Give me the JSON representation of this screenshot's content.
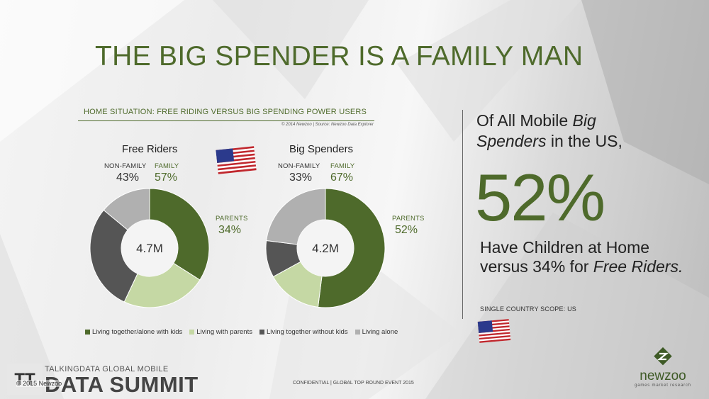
{
  "slide": {
    "title": "THE BIG SPENDER IS A FAMILY MAN",
    "chart_heading": "HOME SITUATION: FREE RIDING VERSUS BIG SPENDING POWER USERS",
    "chart_credit": "© 2014 Newzoo | Source: Newzoo Data Explorer"
  },
  "colors": {
    "accent_green": "#4e6a2b",
    "living_with_kids": "#4e6a2b",
    "living_with_parents": "#c5d8a4",
    "living_without_kids": "#555555",
    "living_alone": "#b0b0b0"
  },
  "donuts": [
    {
      "title": "Free Riders",
      "center_label": "4.7M",
      "non_family_label": "NON-FAMILY",
      "non_family_pct": "43%",
      "family_label": "FAMILY",
      "family_pct": "57%",
      "parents_label": "PARENTS",
      "parents_pct": "34%"
    },
    {
      "title": "Big Spenders",
      "center_label": "4.2M",
      "non_family_label": "NON-FAMILY",
      "non_family_pct": "33%",
      "family_label": "FAMILY",
      "family_pct": "67%",
      "parents_label": "PARENTS",
      "parents_pct": "52%"
    }
  ],
  "legend": [
    {
      "label": "Living together/alone with kids",
      "color": "#4e6a2b"
    },
    {
      "label": "Living with parents",
      "color": "#c5d8a4"
    },
    {
      "label": "Living together without kids",
      "color": "#555555"
    },
    {
      "label": "Living alone",
      "color": "#b0b0b0"
    }
  ],
  "chart_data": {
    "type": "pie",
    "title": "HOME SITUATION: FREE RIDING VERSUS BIG SPENDING POWER USERS",
    "categories": [
      "Living together/alone with kids",
      "Living with parents",
      "Living together without kids",
      "Living alone"
    ],
    "series": [
      {
        "name": "Free Riders",
        "values": [
          34,
          23,
          29,
          14
        ],
        "total": "4.7M"
      },
      {
        "name": "Big Spenders",
        "values": [
          52,
          15,
          10,
          23
        ],
        "total": "4.2M"
      }
    ],
    "legend_position": "bottom"
  },
  "callout": {
    "headline_pre": "Of All Mobile ",
    "headline_em1": "Big",
    "headline_em2": "Spenders",
    "headline_post": " in the US,",
    "big_stat": "52%",
    "sub_pre": "Have Children at Home versus 34% for ",
    "sub_em": "Free Riders.",
    "scope": "SINGLE COUNTRY SCOPE: US"
  },
  "footer": {
    "confidential": "CONFIDENTIAL | GLOBAL TOP ROUND EVENT 2015",
    "copyright": "© 2015 Newzoo",
    "summit_top": "TALKINGDATA GLOBAL MOBILE",
    "summit_main": "DATA SUMMIT",
    "summit_badge": "TT",
    "brand": "newzoo",
    "brand_tag": "games market research"
  },
  "icons": {
    "flag": "us-flag-icon",
    "logo": "newzoo-logo-icon"
  }
}
